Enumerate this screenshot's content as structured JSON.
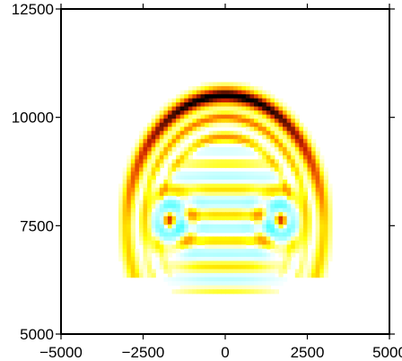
{
  "chart_data": {
    "type": "heatmap",
    "title": "",
    "xlabel": "",
    "ylabel": "",
    "xlim": [
      -5000,
      5000
    ],
    "ylim": [
      5000,
      12500
    ],
    "x_ticks": [
      {
        "value": -5000,
        "label": "−5000"
      },
      {
        "value": -2500,
        "label": "−2500"
      },
      {
        "value": 0,
        "label": "0"
      },
      {
        "value": 2500,
        "label": "2500"
      },
      {
        "value": 5000,
        "label": "5000"
      }
    ],
    "y_ticks": [
      {
        "value": 5000,
        "label": "5000"
      },
      {
        "value": 7500,
        "label": "7500"
      },
      {
        "value": 10000,
        "label": "10000"
      },
      {
        "value": 12500,
        "label": "12500"
      }
    ],
    "colormap": [
      "#00ffff",
      "#ffffff",
      "#ffff00",
      "#ff8000",
      "#cc2200",
      "#000000"
    ],
    "features": [
      {
        "name": "outer wavefront arc",
        "center": [
          0,
          7500
        ],
        "radius": 3000,
        "intensity": 1.0
      },
      {
        "name": "inner ring 1",
        "center": [
          0,
          7500
        ],
        "radius": 2500,
        "intensity": 0.55
      },
      {
        "name": "inner ring 2",
        "center": [
          0,
          7500
        ],
        "radius": 2050,
        "intensity": 0.4
      },
      {
        "name": "left vortex",
        "center": [
          -1700,
          7600
        ],
        "intensity": 0.7
      },
      {
        "name": "right vortex",
        "center": [
          1700,
          7600
        ],
        "intensity": 0.7
      }
    ],
    "grid": false,
    "legend": "none"
  }
}
